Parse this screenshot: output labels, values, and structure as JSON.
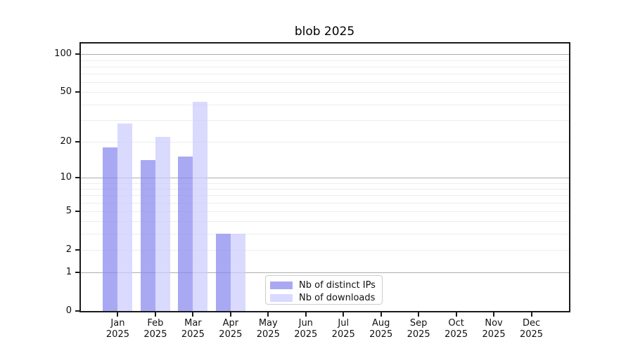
{
  "chart_data": {
    "type": "bar",
    "title": "blob 2025",
    "categories": [
      "Jan",
      "Feb",
      "Mar",
      "Apr",
      "May",
      "Jun",
      "Jul",
      "Aug",
      "Sep",
      "Oct",
      "Nov",
      "Dec"
    ],
    "category_year": "2025",
    "series": [
      {
        "name": "Nb of distinct IPs",
        "color": "#8888ee",
        "values": [
          18,
          14,
          15,
          3,
          0,
          0,
          0,
          0,
          0,
          0,
          0,
          0
        ]
      },
      {
        "name": "Nb of downloads",
        "color": "#ccccff",
        "values": [
          28,
          22,
          42,
          3,
          0,
          0,
          0,
          0,
          0,
          0,
          0,
          0
        ]
      }
    ],
    "xlabel": "",
    "ylabel": "",
    "yscale": "log1p",
    "ylim": [
      0,
      123
    ],
    "y_ticks": [
      0,
      1,
      2,
      5,
      10,
      20,
      50,
      100
    ],
    "y_minor_ticks": [
      2,
      3,
      4,
      5,
      6,
      7,
      8,
      9,
      20,
      30,
      40,
      50,
      60,
      70,
      80,
      90
    ],
    "y_major_gridlines": [
      1,
      10,
      100
    ],
    "grid": "on",
    "legend_position": "lower center",
    "colors": {
      "background": "#ffffff",
      "spine": "#1a1a1a",
      "text": "#111111",
      "major_grid": "rgba(0,0,0,0.32)",
      "minor_grid": "rgba(0,0,0,0.07)"
    }
  }
}
